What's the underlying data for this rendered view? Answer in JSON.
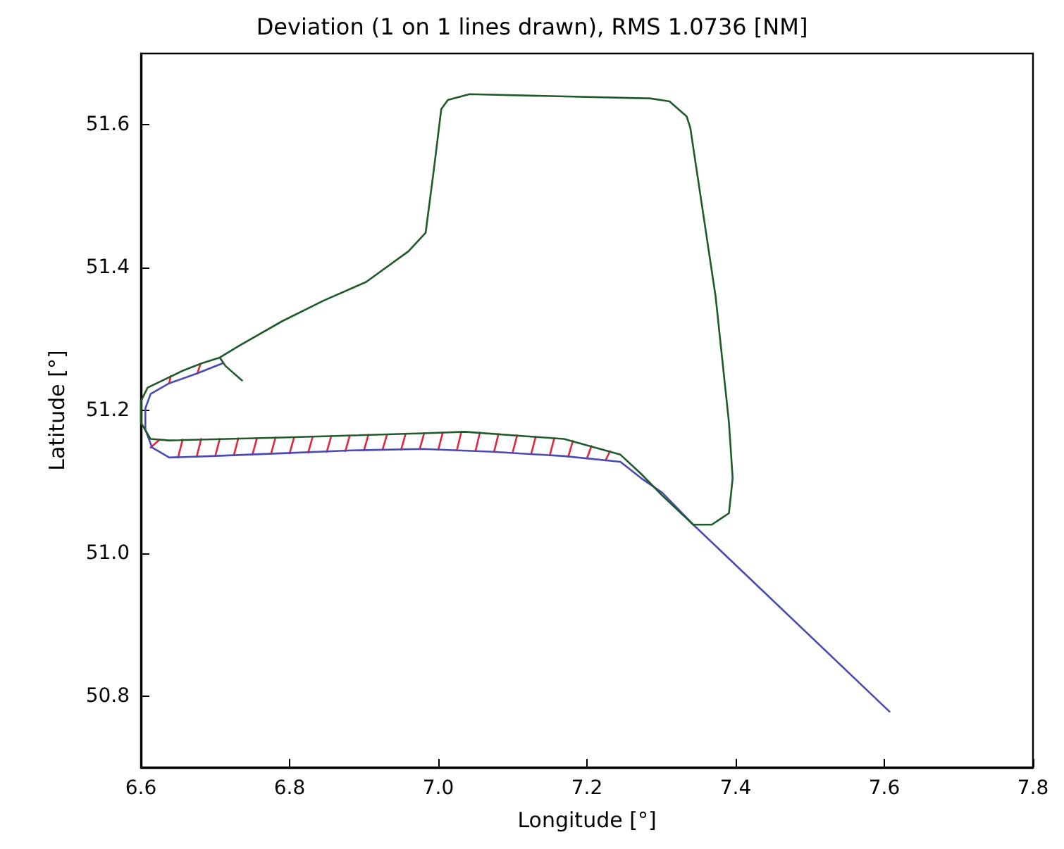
{
  "chart_data": {
    "type": "line",
    "title": "Deviation (1 on 1 lines drawn), RMS 1.0736 [NM]",
    "xlabel": "Longitude [°]",
    "ylabel": "Latitude [°]",
    "xlim": [
      6.6,
      7.8
    ],
    "ylim": [
      50.7,
      51.7
    ],
    "xticks": [
      6.6,
      6.8,
      {
        "value": 7,
        "label": "7.0"
      },
      7.2,
      7.4,
      7.6,
      7.8
    ],
    "yticks": [
      50.8,
      {
        "value": 51,
        "label": "51.0"
      },
      51.2,
      51.4,
      51.6
    ],
    "grid": false,
    "marker": "none",
    "line_style": "solid",
    "series": [
      {
        "color": "#e3263f",
        "x": [
          6.65,
          6.656,
          null,
          6.675,
          6.681,
          null,
          6.7,
          6.706,
          null,
          6.725,
          6.731,
          null,
          6.75,
          6.756,
          null,
          6.775,
          6.781,
          null,
          6.8,
          6.806,
          null,
          6.825,
          6.831,
          null,
          6.85,
          6.856,
          null,
          6.875,
          6.881,
          null,
          6.9,
          6.906,
          null,
          6.925,
          6.931,
          null,
          6.95,
          6.956,
          null,
          6.975,
          6.981,
          null,
          7.0,
          7.006,
          null,
          7.025,
          7.031,
          null,
          7.05,
          7.056,
          null,
          7.075,
          7.081,
          null,
          7.1,
          7.106,
          null,
          7.125,
          7.131,
          null,
          7.15,
          7.156,
          null,
          7.175,
          7.181,
          null,
          7.2,
          7.206,
          null,
          7.225,
          7.231,
          null,
          6.613,
          6.625,
          null,
          6.638,
          6.64,
          null,
          6.676,
          6.68
        ],
        "values": [
          51.134,
          51.159,
          null,
          51.135,
          51.16,
          null,
          51.136,
          51.16,
          null,
          51.137,
          51.161,
          null,
          51.138,
          51.161,
          null,
          51.139,
          51.162,
          null,
          51.14,
          51.162,
          null,
          51.141,
          51.163,
          null,
          51.142,
          51.164,
          null,
          51.143,
          51.165,
          null,
          51.144,
          51.166,
          null,
          51.145,
          51.166,
          null,
          51.145,
          51.167,
          null,
          51.146,
          51.168,
          null,
          51.145,
          51.169,
          null,
          51.144,
          51.17,
          null,
          51.143,
          51.169,
          null,
          51.142,
          51.167,
          null,
          51.141,
          51.165,
          null,
          51.139,
          51.163,
          null,
          51.137,
          51.161,
          null,
          51.136,
          51.157,
          null,
          51.133,
          51.15,
          null,
          51.13,
          51.143,
          null,
          51.148,
          51.159,
          null,
          51.238,
          51.248,
          null,
          51.252,
          51.265
        ]
      },
      {
        "color": "#4a4ab4",
        "x": [
          7.607,
          7.343,
          7.301,
          7.273,
          7.245,
          7.169,
          7.074,
          6.979,
          6.884,
          6.79,
          6.695,
          6.638,
          6.615,
          6.606,
          6.606,
          6.613,
          6.638,
          6.676,
          6.71
        ],
        "values": [
          50.778,
          51.04,
          51.085,
          51.105,
          51.128,
          51.136,
          51.142,
          51.146,
          51.144,
          51.14,
          51.136,
          51.134,
          51.148,
          51.173,
          51.203,
          51.223,
          51.238,
          51.252,
          51.266
        ]
      },
      {
        "color": "#1f5a2a",
        "x": [
          6.736,
          6.714,
          6.706,
          6.682,
          6.657,
          6.609,
          6.6,
          6.6,
          6.613,
          6.638,
          6.79,
          6.979,
          7.036,
          7.169,
          7.245,
          7.273,
          7.301,
          7.343,
          7.368,
          7.391,
          7.396,
          7.391,
          7.373,
          7.339,
          7.334,
          7.311,
          7.286,
          7.042,
          7.013,
          7.004,
          6.994,
          6.983,
          6.96,
          6.903,
          6.846,
          6.79,
          6.733,
          6.706
        ],
        "values": [
          51.242,
          51.262,
          51.274,
          51.266,
          51.256,
          51.232,
          51.213,
          51.183,
          51.16,
          51.158,
          51.162,
          51.168,
          51.17,
          51.16,
          51.138,
          51.111,
          51.081,
          51.04,
          51.04,
          51.056,
          51.105,
          51.183,
          51.36,
          51.596,
          51.612,
          51.633,
          51.637,
          51.643,
          51.635,
          51.622,
          51.537,
          51.449,
          51.423,
          51.38,
          51.354,
          51.325,
          51.291,
          51.274
        ]
      }
    ]
  }
}
